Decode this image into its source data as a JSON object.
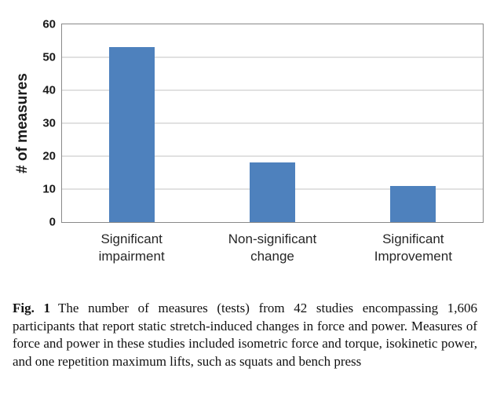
{
  "chart_data": {
    "type": "bar",
    "categories": [
      "Significant\nimpairment",
      "Non-significant\nchange",
      "Significant\nImprovement"
    ],
    "values": [
      53,
      18,
      11
    ],
    "title": "",
    "xlabel": "",
    "ylabel": "# of measures",
    "ylim": [
      0,
      60
    ],
    "yticks": [
      0,
      10,
      20,
      30,
      40,
      50,
      60
    ],
    "bar_color": "#4E81BD",
    "gridline_color": "#C3C3C3",
    "grid": "horizontal",
    "legend": "none"
  },
  "caption": {
    "label": "Fig. 1",
    "text": "The number of measures (tests) from 42 studies encompassing 1,606 participants that report static stretch-induced changes in force and power. Measures of force and power in these studies included isometric force and torque, isokinetic power, and one repetition maximum lifts, such as squats and bench press"
  }
}
